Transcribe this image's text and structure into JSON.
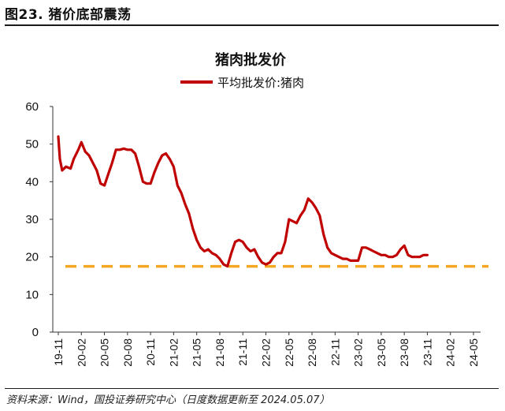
{
  "figure": {
    "title": "图23. 猪价底部震荡",
    "source": "资料来源：Wind，国投证券研究中心（日度数据更新至 2024.05.07）"
  },
  "chart_data": {
    "type": "line",
    "title": "猪肉批发价",
    "xlabel": "",
    "ylabel": "",
    "ylim": [
      0,
      60
    ],
    "yticks": [
      0,
      10,
      20,
      30,
      40,
      50,
      60
    ],
    "xticks": [
      "19-11",
      "20-02",
      "20-05",
      "20-08",
      "20-11",
      "21-02",
      "21-05",
      "21-08",
      "21-11",
      "22-02",
      "22-05",
      "22-08",
      "22-11",
      "23-02",
      "23-05",
      "23-08",
      "23-11",
      "24-02",
      "24-05"
    ],
    "grid": false,
    "legend_position": "top-center",
    "colors": {
      "series": "#c00000",
      "reference": "#f5a623"
    },
    "series": [
      {
        "name": "平均批发价:猪肉",
        "points": [
          [
            "19-11",
            52.0
          ],
          [
            "19-11.2",
            46.0
          ],
          [
            "19-11.5",
            43.0
          ],
          [
            "19-12",
            44.0
          ],
          [
            "19-12.6",
            43.5
          ],
          [
            "20-01",
            46.0
          ],
          [
            "20-01.6",
            48.5
          ],
          [
            "20-02",
            50.5
          ],
          [
            "20-02.5",
            48.0
          ],
          [
            "20-03",
            47.0
          ],
          [
            "20-03.5",
            45.0
          ],
          [
            "20-04",
            43.0
          ],
          [
            "20-04.5",
            39.5
          ],
          [
            "20-05",
            39.0
          ],
          [
            "20-05.5",
            42.0
          ],
          [
            "20-06",
            45.0
          ],
          [
            "20-06.5",
            48.5
          ],
          [
            "20-07",
            48.5
          ],
          [
            "20-07.5",
            48.8
          ],
          [
            "20-08",
            48.5
          ],
          [
            "20-08.5",
            48.5
          ],
          [
            "20-09",
            47.5
          ],
          [
            "20-09.5",
            44.0
          ],
          [
            "20-10",
            40.0
          ],
          [
            "20-10.5",
            39.5
          ],
          [
            "20-11",
            39.5
          ],
          [
            "20-11.5",
            42.5
          ],
          [
            "20-12",
            45.0
          ],
          [
            "20-12.5",
            47.0
          ],
          [
            "21-01",
            47.5
          ],
          [
            "21-01.5",
            46.0
          ],
          [
            "21-02",
            44.0
          ],
          [
            "21-02.5",
            39.0
          ],
          [
            "21-03",
            37.0
          ],
          [
            "21-03.5",
            34.0
          ],
          [
            "21-04",
            31.5
          ],
          [
            "21-04.5",
            27.5
          ],
          [
            "21-05",
            24.5
          ],
          [
            "21-05.5",
            22.5
          ],
          [
            "21-06",
            21.5
          ],
          [
            "21-06.5",
            22.0
          ],
          [
            "21-07",
            21.0
          ],
          [
            "21-07.5",
            20.5
          ],
          [
            "21-08",
            19.5
          ],
          [
            "21-08.5",
            18.0
          ],
          [
            "21-09",
            17.5
          ],
          [
            "21-09.5",
            21.0
          ],
          [
            "21-10",
            24.0
          ],
          [
            "21-10.5",
            24.5
          ],
          [
            "21-11",
            24.0
          ],
          [
            "21-11.5",
            22.5
          ],
          [
            "21-12",
            21.5
          ],
          [
            "21-12.5",
            22.0
          ],
          [
            "22-01",
            20.0
          ],
          [
            "22-01.5",
            18.5
          ],
          [
            "22-02",
            18.0
          ],
          [
            "22-02.5",
            18.5
          ],
          [
            "22-03",
            20.0
          ],
          [
            "22-03.5",
            21.0
          ],
          [
            "22-04",
            21.0
          ],
          [
            "22-04.5",
            24.0
          ],
          [
            "22-05",
            30.0
          ],
          [
            "22-05.5",
            29.5
          ],
          [
            "22-06",
            29.0
          ],
          [
            "22-06.5",
            31.0
          ],
          [
            "22-07",
            32.5
          ],
          [
            "22-07.5",
            35.5
          ],
          [
            "22-08",
            34.5
          ],
          [
            "22-08.5",
            33.0
          ],
          [
            "22-09",
            31.0
          ],
          [
            "22-09.5",
            26.0
          ],
          [
            "22-10",
            22.5
          ],
          [
            "22-10.5",
            21.0
          ],
          [
            "22-11",
            20.5
          ],
          [
            "22-11.5",
            20.0
          ],
          [
            "22-12",
            19.5
          ],
          [
            "22-12.5",
            19.5
          ],
          [
            "23-01",
            19.0
          ],
          [
            "23-01.5",
            19.0
          ],
          [
            "23-02",
            19.0
          ],
          [
            "23-02.5",
            22.5
          ],
          [
            "23-03",
            22.5
          ],
          [
            "23-03.5",
            22.0
          ],
          [
            "23-04",
            21.5
          ],
          [
            "23-04.5",
            21.0
          ],
          [
            "23-05",
            20.5
          ],
          [
            "23-05.5",
            20.5
          ],
          [
            "23-06",
            20.0
          ],
          [
            "23-06.5",
            20.0
          ],
          [
            "23-07",
            20.5
          ],
          [
            "23-07.5",
            22.0
          ],
          [
            "23-08",
            23.0
          ],
          [
            "23-08.5",
            20.5
          ],
          [
            "23-09",
            20.0
          ],
          [
            "23-09.5",
            20.0
          ],
          [
            "23-10",
            20.0
          ],
          [
            "23-10.5",
            20.5
          ],
          [
            "23-11",
            20.5
          ]
        ]
      }
    ],
    "reference_line": {
      "y": 17.5,
      "style": "dashed"
    }
  }
}
